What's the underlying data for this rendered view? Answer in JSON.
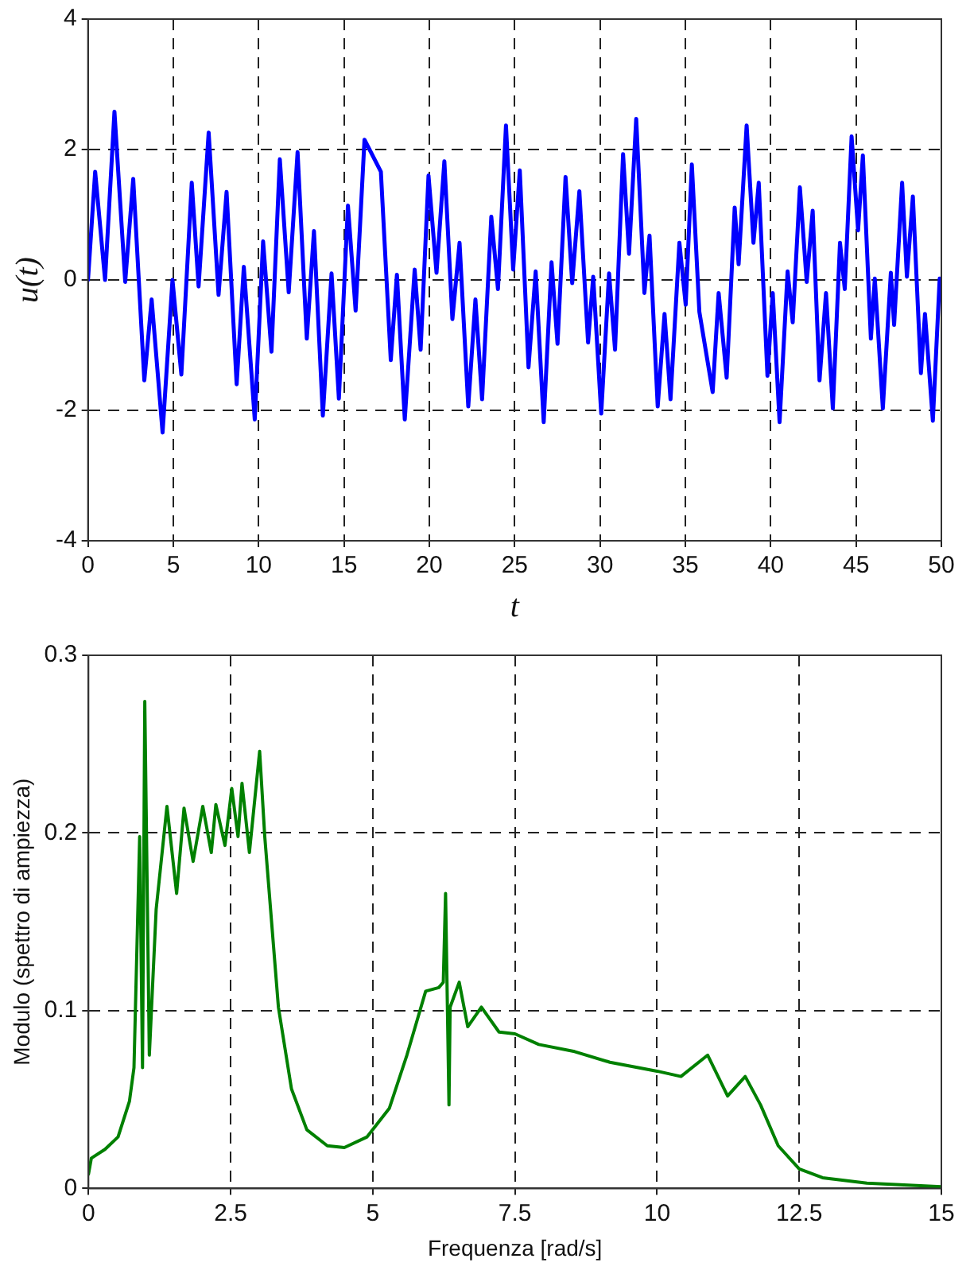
{
  "chart_data": [
    {
      "type": "line",
      "ylabel": "u(t)",
      "xlabel": "t",
      "xlim": [
        0,
        50
      ],
      "xticks": [
        0,
        5,
        10,
        15,
        20,
        25,
        30,
        35,
        40,
        45,
        50
      ],
      "ylim": [
        -4,
        4
      ],
      "yticks": [
        -4,
        -2,
        0,
        2,
        4
      ],
      "grid": true,
      "legend": false,
      "marker": "none",
      "line_style": "solid",
      "series": [
        {
          "color": "#0000ff",
          "x": [
            0,
            0.42,
            1.0,
            1.55,
            2.18,
            2.65,
            3.3,
            3.73,
            4.37,
            4.95,
            5.47,
            6.08,
            6.48,
            7.07,
            7.65,
            8.12,
            8.71,
            9.13,
            9.77,
            10.26,
            10.75,
            11.24,
            11.76,
            12.28,
            12.82,
            13.24,
            13.76,
            14.27,
            14.7,
            15.23,
            15.68,
            16.2,
            17.16,
            17.74,
            18.1,
            18.56,
            19.14,
            19.49,
            19.95,
            20.42,
            20.88,
            21.35,
            21.77,
            22.28,
            22.7,
            23.09,
            23.63,
            24.02,
            24.49,
            24.91,
            25.3,
            25.81,
            26.23,
            26.7,
            27.16,
            27.51,
            27.98,
            28.37,
            28.79,
            29.3,
            29.6,
            30.07,
            30.53,
            30.88,
            31.35,
            31.7,
            32.12,
            32.6,
            32.9,
            33.38,
            33.78,
            34.13,
            34.65,
            35.02,
            35.38,
            35.82,
            36.6,
            36.95,
            37.42,
            37.89,
            38.12,
            38.59,
            38.99,
            39.3,
            39.81,
            40.12,
            40.52,
            40.99,
            41.29,
            41.71,
            42.11,
            42.46,
            42.86,
            43.24,
            43.64,
            44.06,
            44.34,
            44.74,
            45.12,
            45.4,
            45.87,
            46.1,
            46.57,
            47.04,
            47.23,
            47.7,
            47.98,
            48.33,
            48.8,
            49.04,
            49.5,
            49.9
          ],
          "values": [
            0,
            1.66,
            0,
            2.58,
            -0.03,
            1.55,
            -1.54,
            -0.3,
            -2.34,
            0,
            -1.45,
            1.49,
            -0.1,
            2.26,
            -0.23,
            1.35,
            -1.6,
            0.2,
            -2.14,
            0.59,
            -1.1,
            1.85,
            -0.19,
            1.96,
            -0.9,
            0.75,
            -2.08,
            0.1,
            -1.82,
            1.14,
            -0.47,
            2.15,
            1.66,
            -1.23,
            0.08,
            -2.14,
            0.16,
            -1.07,
            1.6,
            0.11,
            1.82,
            -0.6,
            0.57,
            -1.94,
            -0.3,
            -1.83,
            0.97,
            -0.14,
            2.37,
            0.16,
            1.68,
            -1.34,
            0.13,
            -2.18,
            0.27,
            -0.98,
            1.58,
            -0.05,
            1.36,
            -0.96,
            0.05,
            -2.05,
            0.1,
            -1.07,
            1.93,
            0.4,
            2.47,
            -0.2,
            0.68,
            -1.94,
            -0.52,
            -1.83,
            0.57,
            -0.38,
            1.77,
            -0.49,
            -1.72,
            -0.2,
            -1.5,
            1.11,
            0.24,
            2.37,
            0.57,
            1.49,
            -1.47,
            -0.2,
            -2.18,
            0.13,
            -0.65,
            1.42,
            -0.03,
            1.06,
            -1.54,
            -0.2,
            -1.97,
            0.57,
            -0.14,
            2.2,
            0.76,
            1.91,
            -0.9,
            0.02,
            -1.97,
            0.11,
            -0.69,
            1.49,
            0.05,
            1.28,
            -1.43,
            -0.52,
            -2.16,
            0.02
          ]
        }
      ]
    },
    {
      "type": "line",
      "ylabel": "Modulo (spettro di ampiezza)",
      "xlabel": "Frequenza [rad/s]",
      "xlim": [
        0,
        15
      ],
      "xticks": [
        0,
        2.5,
        5,
        7.5,
        10,
        12.5,
        15
      ],
      "ylim": [
        0,
        0.3
      ],
      "yticks": [
        0,
        0.1,
        0.2,
        0.3
      ],
      "grid": true,
      "legend": false,
      "marker": "none",
      "line_style": "solid",
      "series": [
        {
          "color": "#008000",
          "x": [
            0,
            0.05,
            0.29,
            0.52,
            0.72,
            0.8,
            0.9,
            0.95,
            0.99,
            1.07,
            1.19,
            1.38,
            1.55,
            1.68,
            1.84,
            2.01,
            2.16,
            2.24,
            2.4,
            2.52,
            2.63,
            2.7,
            2.83,
            3.01,
            3.1,
            3.34,
            3.57,
            3.84,
            4.2,
            4.5,
            4.9,
            5.29,
            5.6,
            5.93,
            6.16,
            6.24,
            6.28,
            6.34,
            6.36,
            6.52,
            6.67,
            6.91,
            7.22,
            7.5,
            7.92,
            8.55,
            9.17,
            10,
            10.42,
            10.89,
            11.24,
            11.55,
            11.82,
            12.13,
            12.5,
            12.91,
            13.69,
            15
          ],
          "values": [
            0.008,
            0.017,
            0.022,
            0.029,
            0.049,
            0.068,
            0.198,
            0.068,
            0.274,
            0.075,
            0.157,
            0.215,
            0.166,
            0.214,
            0.184,
            0.215,
            0.189,
            0.216,
            0.193,
            0.225,
            0.198,
            0.228,
            0.189,
            0.246,
            0.198,
            0.102,
            0.056,
            0.033,
            0.024,
            0.023,
            0.029,
            0.045,
            0.075,
            0.111,
            0.113,
            0.116,
            0.166,
            0.047,
            0.102,
            0.116,
            0.091,
            0.102,
            0.088,
            0.087,
            0.081,
            0.077,
            0.071,
            0.066,
            0.063,
            0.075,
            0.052,
            0.063,
            0.047,
            0.024,
            0.011,
            0.006,
            0.003,
            0.001
          ]
        }
      ]
    }
  ]
}
